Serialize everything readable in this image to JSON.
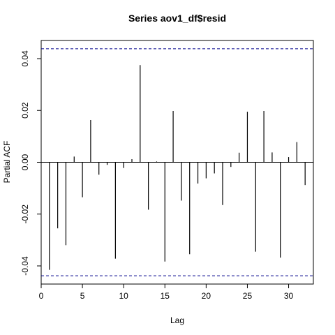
{
  "chart_data": {
    "type": "bar",
    "title": "Series  aov1_df$resid",
    "xlabel": "Lag",
    "ylabel": "Partial ACF",
    "xlim": [
      0,
      33
    ],
    "ylim": [
      -0.047,
      0.047
    ],
    "x_ticks": [
      0,
      5,
      10,
      15,
      20,
      25,
      30
    ],
    "x_tick_labels": [
      "0",
      "5",
      "10",
      "15",
      "20",
      "25",
      "30"
    ],
    "y_ticks": [
      -0.04,
      -0.02,
      0.0,
      0.02,
      0.04
    ],
    "y_tick_labels": [
      "-0.04",
      "-0.02",
      "0.00",
      "0.02",
      "0.04"
    ],
    "confidence_bound": 0.0438,
    "bound_color": "#00008b",
    "line_color": "#000000",
    "lags": [
      1,
      2,
      3,
      4,
      5,
      6,
      7,
      8,
      9,
      10,
      11,
      12,
      13,
      14,
      15,
      16,
      17,
      18,
      19,
      20,
      21,
      22,
      23,
      24,
      25,
      26,
      27,
      28,
      29,
      30,
      31,
      32
    ],
    "values": [
      -0.0415,
      -0.0255,
      -0.032,
      0.0022,
      -0.0135,
      0.0163,
      -0.0048,
      -0.001,
      -0.0372,
      -0.0022,
      0.0012,
      0.0375,
      -0.0183,
      0.0003,
      -0.0383,
      0.0198,
      -0.0148,
      -0.0355,
      -0.0082,
      -0.0062,
      -0.0043,
      -0.0165,
      -0.0018,
      0.0037,
      0.0195,
      -0.0345,
      0.0198,
      0.0038,
      -0.0368,
      0.002,
      0.0078,
      -0.0088
    ]
  }
}
